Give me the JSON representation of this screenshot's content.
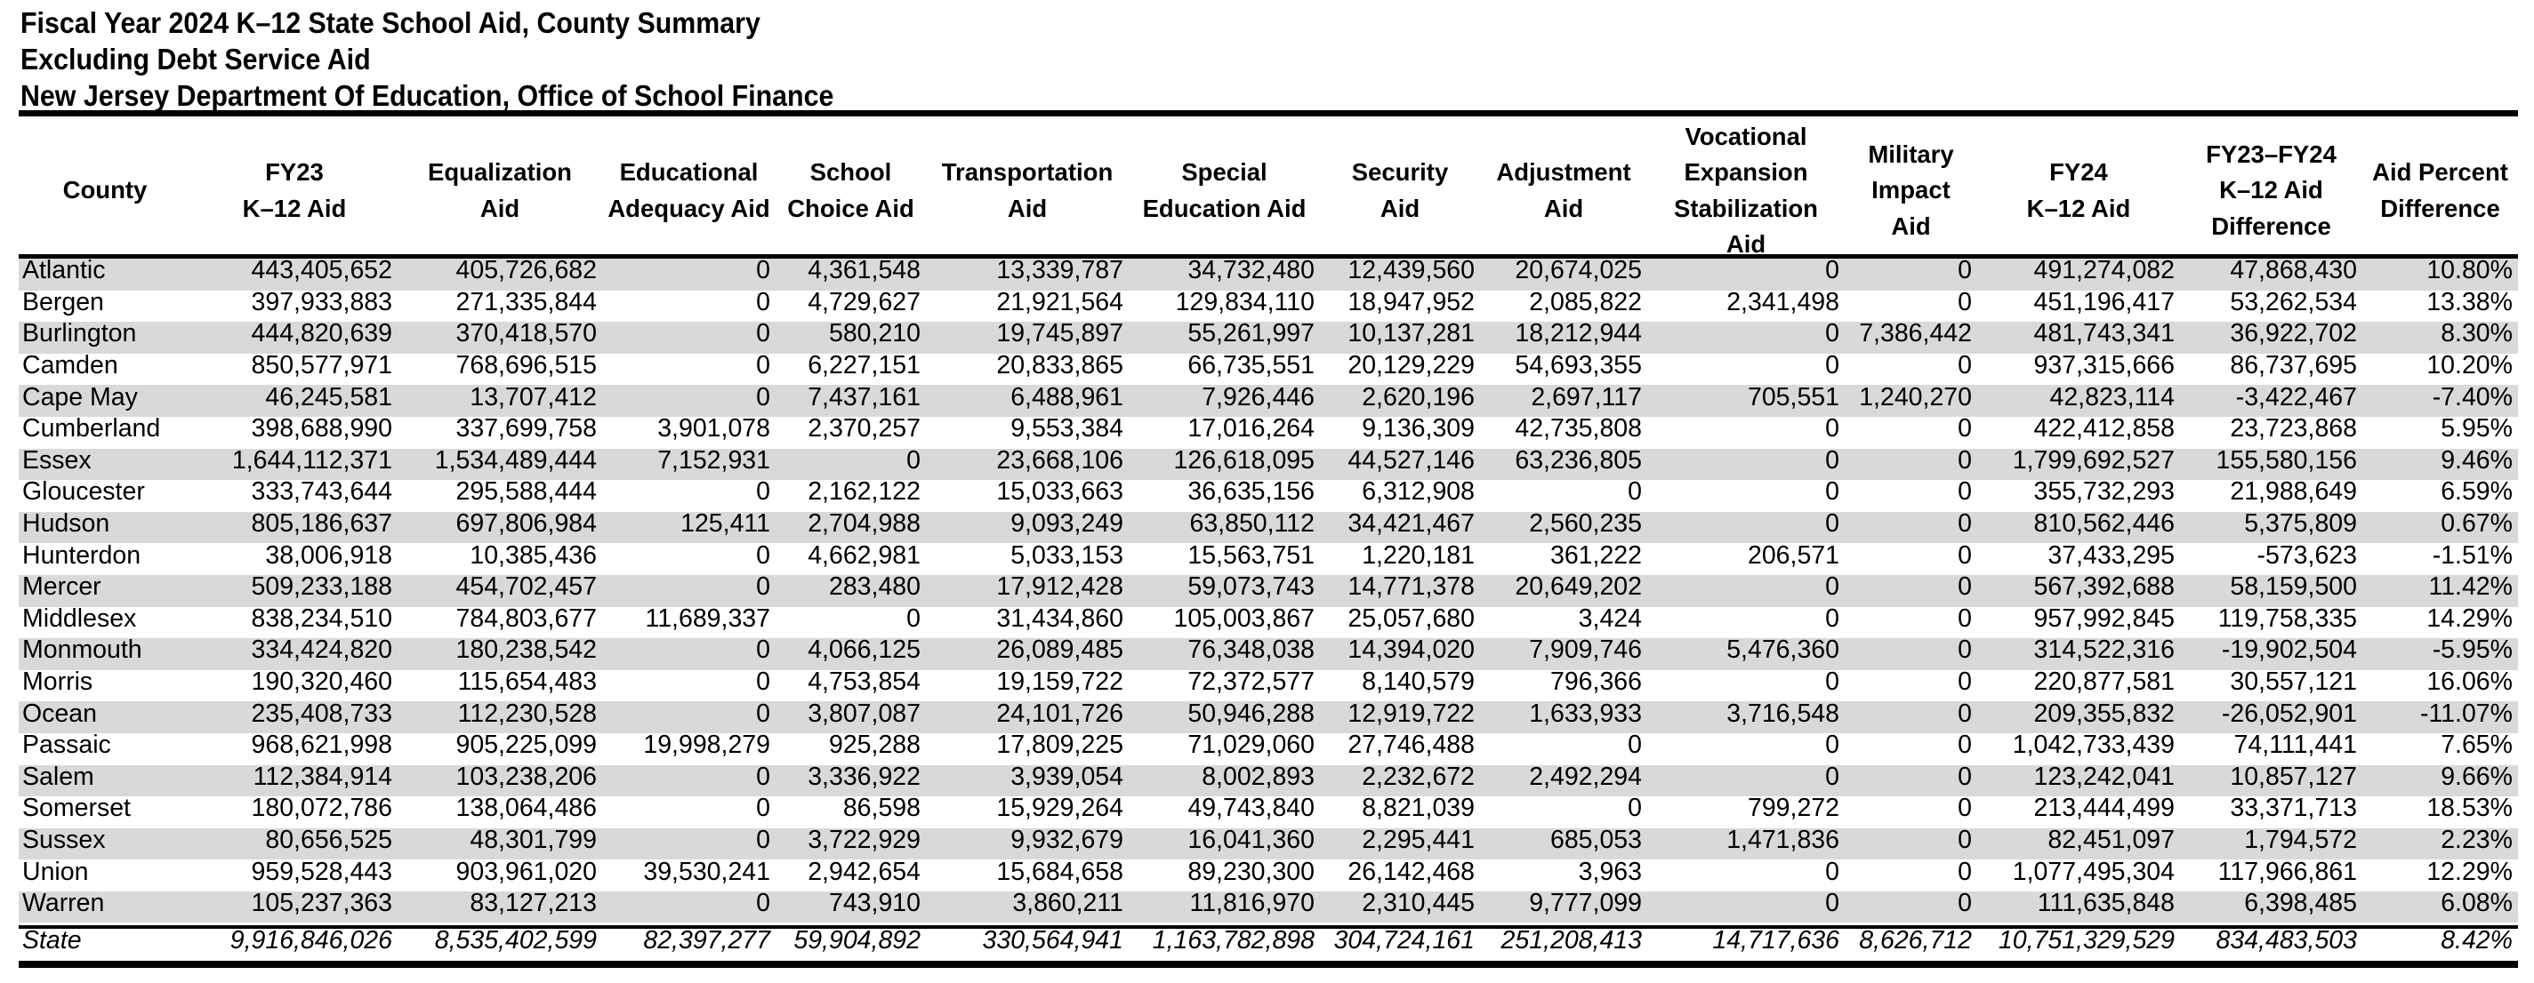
{
  "title": {
    "line1": "Fiscal Year 2024 K–12 State School Aid, County Summary",
    "line2": "Excluding Debt Service Aid",
    "line3": "New Jersey Department Of Education, Office of School Finance"
  },
  "table": {
    "columns": [
      {
        "id": "county",
        "label": "County"
      },
      {
        "id": "fy23-k12-aid",
        "label": "FY23\nK–12 Aid"
      },
      {
        "id": "equalization-aid",
        "label": "Equalization\nAid"
      },
      {
        "id": "educational-adequacy-aid",
        "label": "Educational\nAdequacy Aid"
      },
      {
        "id": "school-choice-aid",
        "label": "School\nChoice Aid"
      },
      {
        "id": "transportation-aid",
        "label": "Transportation\nAid"
      },
      {
        "id": "special-education-aid",
        "label": "Special\nEducation Aid"
      },
      {
        "id": "security-aid",
        "label": "Security\nAid"
      },
      {
        "id": "adjustment-aid",
        "label": "Adjustment\nAid"
      },
      {
        "id": "vocational-expansion-stabilization-aid",
        "label": "Vocational\nExpansion\nStabilization\nAid"
      },
      {
        "id": "military-impact-aid",
        "label": "Military\nImpact\nAid"
      },
      {
        "id": "fy24-k12-aid",
        "label": "FY24\nK–12 Aid"
      },
      {
        "id": "fy23-fy24-k12-aid-difference",
        "label": "FY23–FY24\nK–12 Aid\nDifference"
      },
      {
        "id": "aid-percent-difference",
        "label": "Aid Percent\nDifference"
      }
    ],
    "rows": [
      {
        "county": "Atlantic",
        "values": [
          "443,405,652",
          "405,726,682",
          "0",
          "4,361,548",
          "13,339,787",
          "34,732,480",
          "12,439,560",
          "20,674,025",
          "0",
          "0",
          "491,274,082",
          "47,868,430",
          "10.80%"
        ]
      },
      {
        "county": "Bergen",
        "values": [
          "397,933,883",
          "271,335,844",
          "0",
          "4,729,627",
          "21,921,564",
          "129,834,110",
          "18,947,952",
          "2,085,822",
          "2,341,498",
          "0",
          "451,196,417",
          "53,262,534",
          "13.38%"
        ]
      },
      {
        "county": "Burlington",
        "values": [
          "444,820,639",
          "370,418,570",
          "0",
          "580,210",
          "19,745,897",
          "55,261,997",
          "10,137,281",
          "18,212,944",
          "0",
          "7,386,442",
          "481,743,341",
          "36,922,702",
          "8.30%"
        ]
      },
      {
        "county": "Camden",
        "values": [
          "850,577,971",
          "768,696,515",
          "0",
          "6,227,151",
          "20,833,865",
          "66,735,551",
          "20,129,229",
          "54,693,355",
          "0",
          "0",
          "937,315,666",
          "86,737,695",
          "10.20%"
        ]
      },
      {
        "county": "Cape May",
        "values": [
          "46,245,581",
          "13,707,412",
          "0",
          "7,437,161",
          "6,488,961",
          "7,926,446",
          "2,620,196",
          "2,697,117",
          "705,551",
          "1,240,270",
          "42,823,114",
          "-3,422,467",
          "-7.40%"
        ]
      },
      {
        "county": "Cumberland",
        "values": [
          "398,688,990",
          "337,699,758",
          "3,901,078",
          "2,370,257",
          "9,553,384",
          "17,016,264",
          "9,136,309",
          "42,735,808",
          "0",
          "0",
          "422,412,858",
          "23,723,868",
          "5.95%"
        ]
      },
      {
        "county": "Essex",
        "values": [
          "1,644,112,371",
          "1,534,489,444",
          "7,152,931",
          "0",
          "23,668,106",
          "126,618,095",
          "44,527,146",
          "63,236,805",
          "0",
          "0",
          "1,799,692,527",
          "155,580,156",
          "9.46%"
        ]
      },
      {
        "county": "Gloucester",
        "values": [
          "333,743,644",
          "295,588,444",
          "0",
          "2,162,122",
          "15,033,663",
          "36,635,156",
          "6,312,908",
          "0",
          "0",
          "0",
          "355,732,293",
          "21,988,649",
          "6.59%"
        ]
      },
      {
        "county": "Hudson",
        "values": [
          "805,186,637",
          "697,806,984",
          "125,411",
          "2,704,988",
          "9,093,249",
          "63,850,112",
          "34,421,467",
          "2,560,235",
          "0",
          "0",
          "810,562,446",
          "5,375,809",
          "0.67%"
        ]
      },
      {
        "county": "Hunterdon",
        "values": [
          "38,006,918",
          "10,385,436",
          "0",
          "4,662,981",
          "5,033,153",
          "15,563,751",
          "1,220,181",
          "361,222",
          "206,571",
          "0",
          "37,433,295",
          "-573,623",
          "-1.51%"
        ]
      },
      {
        "county": "Mercer",
        "values": [
          "509,233,188",
          "454,702,457",
          "0",
          "283,480",
          "17,912,428",
          "59,073,743",
          "14,771,378",
          "20,649,202",
          "0",
          "0",
          "567,392,688",
          "58,159,500",
          "11.42%"
        ]
      },
      {
        "county": "Middlesex",
        "values": [
          "838,234,510",
          "784,803,677",
          "11,689,337",
          "0",
          "31,434,860",
          "105,003,867",
          "25,057,680",
          "3,424",
          "0",
          "0",
          "957,992,845",
          "119,758,335",
          "14.29%"
        ]
      },
      {
        "county": "Monmouth",
        "values": [
          "334,424,820",
          "180,238,542",
          "0",
          "4,066,125",
          "26,089,485",
          "76,348,038",
          "14,394,020",
          "7,909,746",
          "5,476,360",
          "0",
          "314,522,316",
          "-19,902,504",
          "-5.95%"
        ]
      },
      {
        "county": "Morris",
        "values": [
          "190,320,460",
          "115,654,483",
          "0",
          "4,753,854",
          "19,159,722",
          "72,372,577",
          "8,140,579",
          "796,366",
          "0",
          "0",
          "220,877,581",
          "30,557,121",
          "16.06%"
        ]
      },
      {
        "county": "Ocean",
        "values": [
          "235,408,733",
          "112,230,528",
          "0",
          "3,807,087",
          "24,101,726",
          "50,946,288",
          "12,919,722",
          "1,633,933",
          "3,716,548",
          "0",
          "209,355,832",
          "-26,052,901",
          "-11.07%"
        ]
      },
      {
        "county": "Passaic",
        "values": [
          "968,621,998",
          "905,225,099",
          "19,998,279",
          "925,288",
          "17,809,225",
          "71,029,060",
          "27,746,488",
          "0",
          "0",
          "0",
          "1,042,733,439",
          "74,111,441",
          "7.65%"
        ]
      },
      {
        "county": "Salem",
        "values": [
          "112,384,914",
          "103,238,206",
          "0",
          "3,336,922",
          "3,939,054",
          "8,002,893",
          "2,232,672",
          "2,492,294",
          "0",
          "0",
          "123,242,041",
          "10,857,127",
          "9.66%"
        ]
      },
      {
        "county": "Somerset",
        "values": [
          "180,072,786",
          "138,064,486",
          "0",
          "86,598",
          "15,929,264",
          "49,743,840",
          "8,821,039",
          "0",
          "799,272",
          "0",
          "213,444,499",
          "33,371,713",
          "18.53%"
        ]
      },
      {
        "county": "Sussex",
        "values": [
          "80,656,525",
          "48,301,799",
          "0",
          "3,722,929",
          "9,932,679",
          "16,041,360",
          "2,295,441",
          "685,053",
          "1,471,836",
          "0",
          "82,451,097",
          "1,794,572",
          "2.23%"
        ]
      },
      {
        "county": "Union",
        "values": [
          "959,528,443",
          "903,961,020",
          "39,530,241",
          "2,942,654",
          "15,684,658",
          "89,230,300",
          "26,142,468",
          "3,963",
          "0",
          "0",
          "1,077,495,304",
          "117,966,861",
          "12.29%"
        ]
      },
      {
        "county": "Warren",
        "values": [
          "105,237,363",
          "83,127,213",
          "0",
          "743,910",
          "3,860,211",
          "11,816,970",
          "2,310,445",
          "9,777,099",
          "0",
          "0",
          "111,635,848",
          "6,398,485",
          "6.08%"
        ]
      }
    ],
    "total": {
      "label": "State",
      "values": [
        "9,916,846,026",
        "8,535,402,599",
        "82,397,277",
        "59,904,892",
        "330,564,941",
        "1,163,782,898",
        "304,724,161",
        "251,208,413",
        "14,717,636",
        "8,626,712",
        "10,751,329,529",
        "834,483,503",
        "8.42%"
      ]
    }
  },
  "colors": {
    "row_stripe": "#d9d9d9",
    "row_plain": "#ffffff",
    "text": "#000000",
    "rule": "#000000",
    "page_background": "#ffffff"
  }
}
